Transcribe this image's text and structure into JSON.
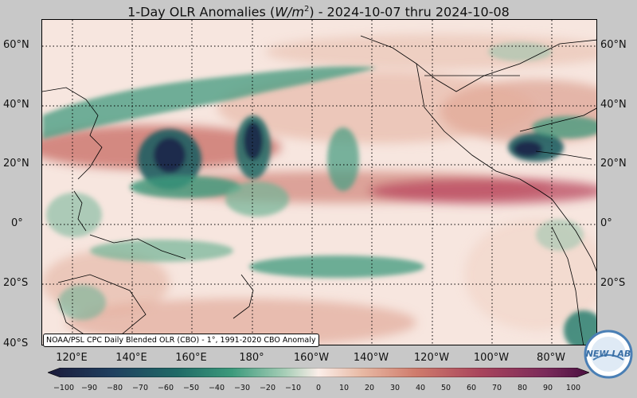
{
  "title": {
    "prefix": "1-Day OLR Anomalies (",
    "unit_main": "W/m",
    "unit_exp": "2",
    "suffix": ") - 2024-10-07 thru 2024-10-08"
  },
  "map": {
    "lat_labels": [
      "60°N",
      "40°N",
      "20°N",
      "0°",
      "20°S",
      "40°S"
    ],
    "lon_labels": [
      "120°E",
      "140°E",
      "160°E",
      "180°",
      "160°W",
      "140°W",
      "120°W",
      "100°W",
      "80°W"
    ],
    "source_note": "NOAA/PSL CPC Daily Blended OLR (CBO) - 1°, 1991-2020 CBO Anomaly"
  },
  "colorbar": {
    "ticks": [
      "−100",
      "−90",
      "−80",
      "−70",
      "−60",
      "−50",
      "−40",
      "−30",
      "−20",
      "−10",
      "0",
      "10",
      "20",
      "30",
      "40",
      "50",
      "60",
      "70",
      "80",
      "90",
      "100"
    ],
    "colors": {
      "neg_extreme": "#1b2a4a",
      "neg_strong": "#1f6a66",
      "neg_mid": "#3c9a7c",
      "neg_weak": "#a9cfb8",
      "neutral": "#fbeee9",
      "pos_weak": "#e8b9a4",
      "pos_mid": "#cf7b6c",
      "pos_strong": "#a8445c",
      "pos_extreme": "#5a1a4a"
    }
  },
  "logo": {
    "text": "NEW LAB",
    "icon": "noaa-psl-logo-icon"
  }
}
